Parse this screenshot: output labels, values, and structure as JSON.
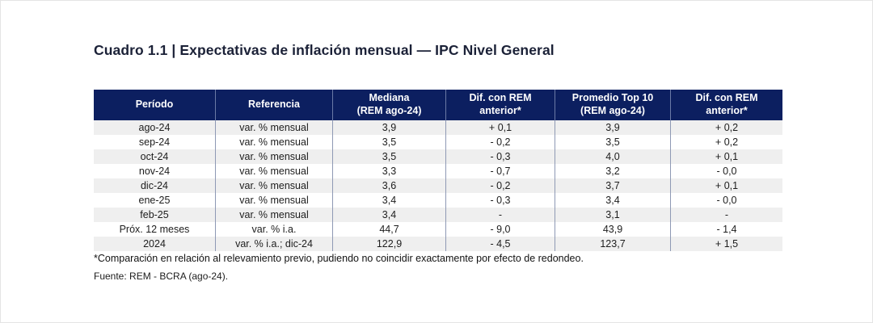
{
  "theme": {
    "page_bg": "#ffffff",
    "header_bg": "#0c1f60",
    "header_text": "#ffffff",
    "stripe_bg": "#efefef",
    "grid_line": "#8e99b4",
    "title_color": "#1b2137",
    "text_color": "#1d1d1d"
  },
  "title": "Cuadro 1.1 | Expectativas de inflación mensual — IPC Nivel General",
  "table": {
    "columns": [
      {
        "label": "Período"
      },
      {
        "label": "Referencia"
      },
      {
        "label": "Mediana\n(REM ago-24)"
      },
      {
        "label": "Dif. con REM\nanterior*"
      },
      {
        "label": "Promedio Top 10\n(REM ago-24)"
      },
      {
        "label": "Dif. con REM\nanterior*"
      }
    ],
    "rows": [
      [
        "ago-24",
        "var. % mensual",
        "3,9",
        "+ 0,1",
        "3,9",
        "+ 0,2"
      ],
      [
        "sep-24",
        "var. % mensual",
        "3,5",
        "- 0,2",
        "3,5",
        "+ 0,2"
      ],
      [
        "oct-24",
        "var. % mensual",
        "3,5",
        "- 0,3",
        "4,0",
        "+ 0,1"
      ],
      [
        "nov-24",
        "var. % mensual",
        "3,3",
        "- 0,7",
        "3,2",
        "- 0,0"
      ],
      [
        "dic-24",
        "var. % mensual",
        "3,6",
        "- 0,2",
        "3,7",
        "+ 0,1"
      ],
      [
        "ene-25",
        "var. % mensual",
        "3,4",
        "- 0,3",
        "3,4",
        "- 0,0"
      ],
      [
        "feb-25",
        "var. % mensual",
        "3,4",
        "-",
        "3,1",
        "-"
      ],
      [
        "Próx. 12 meses",
        "var. % i.a.",
        "44,7",
        "- 9,0",
        "43,9",
        "- 1,4"
      ],
      [
        "2024",
        "var. % i.a.; dic-24",
        "122,9",
        "- 4,5",
        "123,7",
        "+ 1,5"
      ]
    ]
  },
  "chart_data": {
    "type": "table",
    "title": "Cuadro 1.1 | Expectativas de inflación mensual — IPC Nivel General",
    "columns": [
      "Período",
      "Referencia",
      "Mediana (REM ago-24)",
      "Dif. con REM anterior*",
      "Promedio Top 10 (REM ago-24)",
      "Dif. con REM anterior*"
    ],
    "rows": [
      [
        "ago-24",
        "var. % mensual",
        3.9,
        0.1,
        3.9,
        0.2
      ],
      [
        "sep-24",
        "var. % mensual",
        3.5,
        -0.2,
        3.5,
        0.2
      ],
      [
        "oct-24",
        "var. % mensual",
        3.5,
        -0.3,
        4.0,
        0.1
      ],
      [
        "nov-24",
        "var. % mensual",
        3.3,
        -0.7,
        3.2,
        -0.0
      ],
      [
        "dic-24",
        "var. % mensual",
        3.6,
        -0.2,
        3.7,
        0.1
      ],
      [
        "ene-25",
        "var. % mensual",
        3.4,
        -0.3,
        3.4,
        -0.0
      ],
      [
        "feb-25",
        "var. % mensual",
        3.4,
        null,
        3.1,
        null
      ],
      [
        "Próx. 12 meses",
        "var. % i.a.",
        44.7,
        -9.0,
        43.9,
        -1.4
      ],
      [
        "2024",
        "var. % i.a.; dic-24",
        122.9,
        -4.5,
        123.7,
        1.5
      ]
    ]
  },
  "footnotes": {
    "comparison_note": "*Comparación en relación al relevamiento previo, pudiendo no coincidir exactamente por efecto de redondeo.",
    "source": "Fuente: REM - BCRA (ago-24)."
  }
}
